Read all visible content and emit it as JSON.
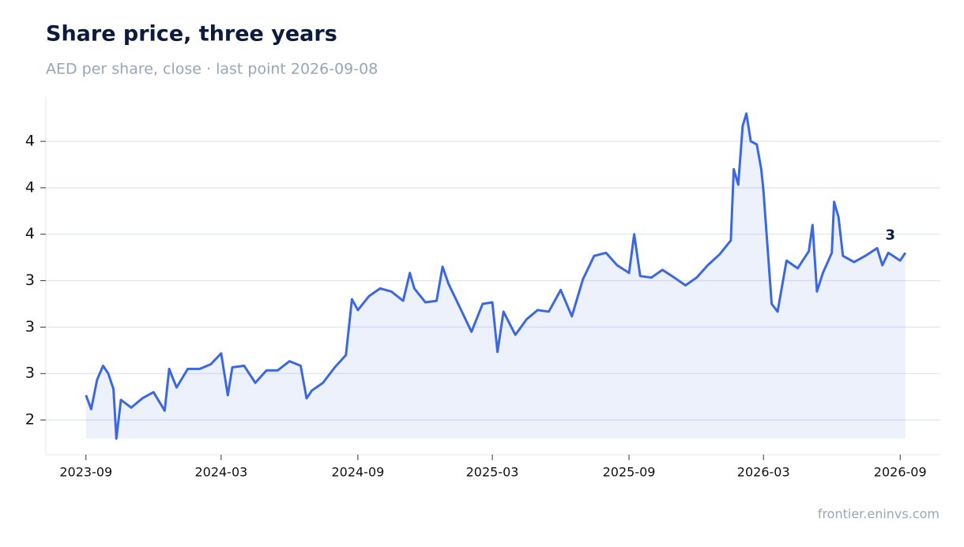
{
  "chart_data": {
    "type": "line",
    "title": "Share price, three years",
    "subtitle": "AED per share, close · last point 2026-09-08",
    "source": "frontier.eninvs.com",
    "annotation": "3",
    "color": "#3b68e0",
    "grid": true,
    "x": [
      "2023-09-01",
      "2023-09-08",
      "2023-09-16",
      "2023-09-24",
      "2023-10-01",
      "2023-10-08",
      "2023-10-12",
      "2023-10-18",
      "2023-11-01",
      "2023-11-16",
      "2023-12-01",
      "2023-12-16",
      "2023-12-22",
      "2024-01-01",
      "2024-01-16",
      "2024-02-01",
      "2024-02-16",
      "2024-03-01",
      "2024-03-10",
      "2024-03-16",
      "2024-04-01",
      "2024-04-16",
      "2024-05-01",
      "2024-05-16",
      "2024-06-01",
      "2024-06-16",
      "2024-06-24",
      "2024-07-01",
      "2024-07-16",
      "2024-08-01",
      "2024-08-16",
      "2024-08-24",
      "2024-09-01",
      "2024-09-16",
      "2024-10-01",
      "2024-10-16",
      "2024-11-01",
      "2024-11-10",
      "2024-11-16",
      "2024-12-01",
      "2024-12-16",
      "2024-12-24",
      "2025-01-01",
      "2025-01-16",
      "2025-02-01",
      "2025-02-16",
      "2025-03-01",
      "2025-03-08",
      "2025-03-16",
      "2025-04-01",
      "2025-04-16",
      "2025-05-01",
      "2025-05-16",
      "2025-06-01",
      "2025-06-16",
      "2025-07-01",
      "2025-07-16",
      "2025-08-01",
      "2025-08-16",
      "2025-09-01",
      "2025-09-08",
      "2025-09-16",
      "2025-10-01",
      "2025-10-16",
      "2025-11-01",
      "2025-11-16",
      "2025-12-01",
      "2025-12-16",
      "2026-01-01",
      "2026-01-16",
      "2026-01-20",
      "2026-01-26",
      "2026-02-01",
      "2026-02-06",
      "2026-02-12",
      "2026-02-20",
      "2026-02-26",
      "2026-03-01",
      "2026-03-06",
      "2026-03-12",
      "2026-03-20",
      "2026-04-01",
      "2026-04-16",
      "2026-05-01",
      "2026-05-06",
      "2026-05-12",
      "2026-05-20",
      "2026-06-01",
      "2026-06-04",
      "2026-06-10",
      "2026-06-16",
      "2026-07-01",
      "2026-07-16",
      "2026-08-01",
      "2026-08-08",
      "2026-08-16",
      "2026-09-01",
      "2026-09-08"
    ],
    "values": [
      2.56,
      2.47,
      2.66,
      2.75,
      2.7,
      2.6,
      2.28,
      2.53,
      2.48,
      2.54,
      2.58,
      2.46,
      2.73,
      2.61,
      2.73,
      2.73,
      2.76,
      2.83,
      2.56,
      2.74,
      2.75,
      2.64,
      2.72,
      2.72,
      2.78,
      2.75,
      2.54,
      2.59,
      2.64,
      2.74,
      2.82,
      3.18,
      3.11,
      3.2,
      3.25,
      3.23,
      3.17,
      3.35,
      3.25,
      3.16,
      3.17,
      3.39,
      3.28,
      3.13,
      2.97,
      3.15,
      3.16,
      2.84,
      3.1,
      2.95,
      3.05,
      3.11,
      3.1,
      3.24,
      3.07,
      3.31,
      3.46,
      3.48,
      3.4,
      3.35,
      3.6,
      3.33,
      3.32,
      3.37,
      3.32,
      3.27,
      3.32,
      3.4,
      3.47,
      3.56,
      4.02,
      3.92,
      4.3,
      4.38,
      4.2,
      4.18,
      4.02,
      3.88,
      3.55,
      3.15,
      3.1,
      3.43,
      3.38,
      3.49,
      3.66,
      3.23,
      3.35,
      3.48,
      3.81,
      3.71,
      3.46,
      3.42,
      3.46,
      3.51,
      3.4,
      3.48,
      3.43,
      3.48
    ],
    "xlim": [
      "2023-07-09",
      "2026-10-25"
    ],
    "xticks": [
      "2023-09",
      "2024-03",
      "2024-09",
      "2025-03",
      "2025-09",
      "2026-03",
      "2026-09"
    ],
    "ylim": [
      2.176,
      4.486
    ],
    "yticks": [
      {
        "value": 2.4,
        "label": "2"
      },
      {
        "value": 2.7,
        "label": "3"
      },
      {
        "value": 3.0,
        "label": "3"
      },
      {
        "value": 3.3,
        "label": "3"
      },
      {
        "value": 3.6,
        "label": "4"
      },
      {
        "value": 3.9,
        "label": "4"
      },
      {
        "value": 4.2,
        "label": "4"
      }
    ]
  }
}
